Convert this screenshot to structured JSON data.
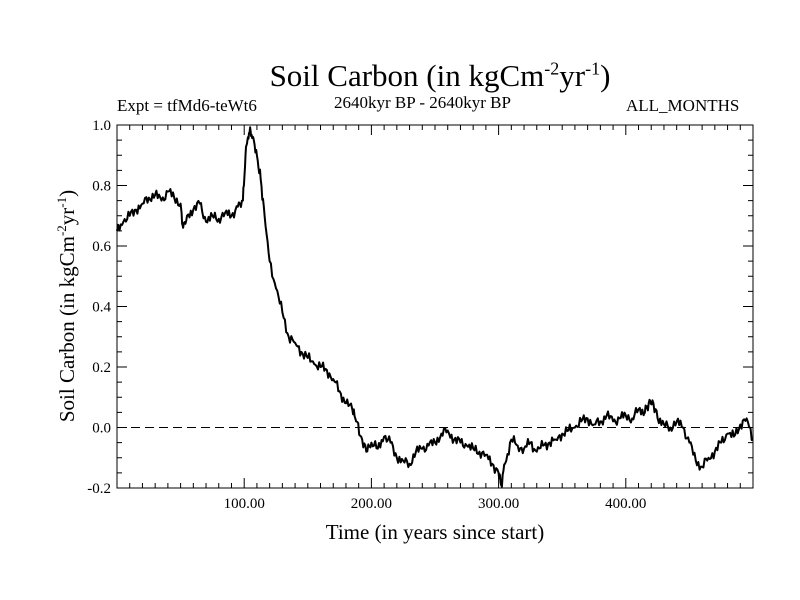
{
  "chart_data": {
    "type": "line",
    "title": "Soil Carbon (in kgCm",
    "title_units": {
      "exp1": "-2",
      "mid": "yr",
      "exp2": "-1",
      "close": ")"
    },
    "expt_label": "Expt = tfMd6-teWt6",
    "period_label": "2640kyr BP - 2640kyr BP",
    "months_label": "ALL_MONTHS",
    "xlabel": "Time (in years since start)",
    "ylabel": {
      "text": "Soil Carbon (in kgCm",
      "exp1": "-2",
      "mid": "yr",
      "exp2": "-1",
      "close": ")"
    },
    "xlim": [
      0,
      500
    ],
    "ylim": [
      -0.2,
      1.0
    ],
    "x_ticks": [
      100,
      200,
      300,
      400
    ],
    "x_tick_labels": [
      "100.00",
      "200.00",
      "300.00",
      "400.00"
    ],
    "y_ticks": [
      -0.2,
      0.0,
      0.2,
      0.4,
      0.6,
      0.8,
      1.0
    ],
    "y_tick_labels": [
      "-0.2",
      "0.0",
      "0.2",
      "0.4",
      "0.6",
      "0.8",
      "1.0"
    ],
    "reference_line": {
      "y": 0.0,
      "style": "dashed"
    },
    "series": [
      {
        "name": "Soil Carbon",
        "x": [
          0,
          5,
          10,
          15,
          20,
          25,
          30,
          35,
          40,
          45,
          50,
          52,
          55,
          60,
          65,
          70,
          75,
          80,
          85,
          90,
          95,
          99,
          101,
          103,
          105,
          107,
          110,
          113,
          116,
          120,
          125,
          130,
          135,
          140,
          145,
          150,
          155,
          160,
          165,
          170,
          175,
          180,
          185,
          188,
          192,
          196,
          200,
          205,
          210,
          215,
          220,
          225,
          230,
          235,
          240,
          245,
          250,
          255,
          260,
          265,
          270,
          275,
          280,
          285,
          290,
          295,
          300,
          302,
          305,
          310,
          315,
          320,
          325,
          330,
          335,
          340,
          345,
          350,
          355,
          360,
          365,
          370,
          375,
          380,
          385,
          390,
          395,
          400,
          405,
          410,
          415,
          418,
          421,
          425,
          430,
          435,
          440,
          445,
          450,
          455,
          460,
          465,
          470,
          475,
          480,
          485,
          490,
          495,
          500
        ],
        "y": [
          0.65,
          0.68,
          0.7,
          0.72,
          0.74,
          0.76,
          0.77,
          0.75,
          0.78,
          0.76,
          0.74,
          0.66,
          0.7,
          0.72,
          0.74,
          0.68,
          0.7,
          0.69,
          0.71,
          0.7,
          0.73,
          0.75,
          0.9,
          0.96,
          0.98,
          0.96,
          0.9,
          0.82,
          0.7,
          0.55,
          0.46,
          0.38,
          0.3,
          0.28,
          0.25,
          0.23,
          0.21,
          0.2,
          0.19,
          0.16,
          0.12,
          0.08,
          0.06,
          0.02,
          -0.03,
          -0.08,
          -0.05,
          -0.07,
          -0.03,
          -0.05,
          -0.1,
          -0.11,
          -0.12,
          -0.08,
          -0.07,
          -0.06,
          -0.05,
          -0.02,
          -0.01,
          -0.04,
          -0.05,
          -0.06,
          -0.07,
          -0.08,
          -0.09,
          -0.12,
          -0.15,
          -0.19,
          -0.12,
          -0.04,
          -0.06,
          -0.07,
          -0.05,
          -0.08,
          -0.06,
          -0.05,
          -0.04,
          -0.02,
          -0.01,
          0.0,
          0.02,
          0.03,
          0.01,
          0.02,
          0.04,
          0.02,
          0.03,
          0.04,
          0.03,
          0.06,
          0.05,
          0.08,
          0.09,
          0.03,
          0.01,
          0.0,
          0.02,
          0.0,
          -0.05,
          -0.11,
          -0.13,
          -0.1,
          -0.08,
          -0.05,
          -0.02,
          -0.03,
          0.01,
          0.03,
          -0.04
        ]
      }
    ]
  }
}
